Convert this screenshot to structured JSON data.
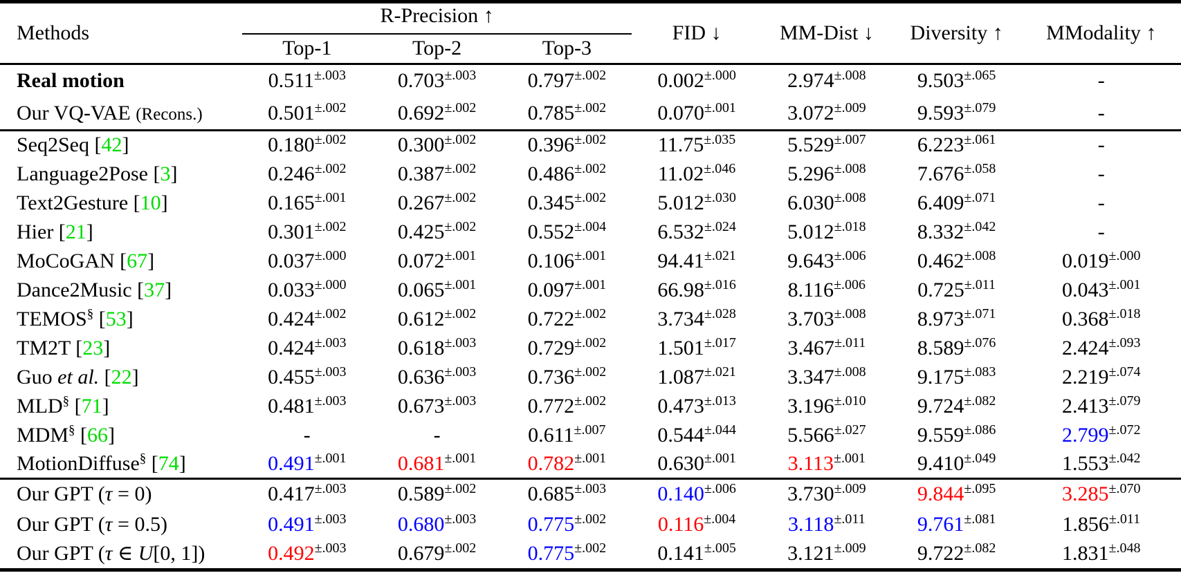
{
  "table": {
    "header": {
      "methods": "Methods",
      "r_precision": "R-Precision ↑",
      "top1": "Top-1",
      "top2": "Top-2",
      "top3": "Top-3",
      "fid": "FID ↓",
      "mm_dist": "MM-Dist ↓",
      "diversity": "Diversity ↑",
      "mmodality": "MModality ↑"
    },
    "colors": {
      "citation": "#00dc00",
      "best": "#ff0000",
      "runner_up": "#0000ff",
      "text": "#000000",
      "background": "#ffffff"
    },
    "sections": [
      {
        "rows": [
          {
            "method": [
              {
                "t": "Real motion",
                "b": true
              }
            ],
            "cells": [
              {
                "v": "0.511",
                "s": "±.003"
              },
              {
                "v": "0.703",
                "s": "±.003"
              },
              {
                "v": "0.797",
                "s": "±.002"
              },
              {
                "v": "0.002",
                "s": "±.000"
              },
              {
                "v": "2.974",
                "s": "±.008"
              },
              {
                "v": "9.503",
                "s": "±.065"
              },
              {
                "v": "-"
              }
            ]
          },
          {
            "method": [
              {
                "t": "Our VQ-VAE "
              },
              {
                "t": "(Recons.)",
                "sm": true
              }
            ],
            "cells": [
              {
                "v": "0.501",
                "s": "±.002"
              },
              {
                "v": "0.692",
                "s": "±.002"
              },
              {
                "v": "0.785",
                "s": "±.002"
              },
              {
                "v": "0.070",
                "s": "±.001"
              },
              {
                "v": "3.072",
                "s": "±.009"
              },
              {
                "v": "9.593",
                "s": "±.079"
              },
              {
                "v": "-"
              }
            ]
          }
        ]
      },
      {
        "rows": [
          {
            "method": [
              {
                "t": "Seq2Seq ["
              },
              {
                "t": "42",
                "c": "cite"
              },
              {
                "t": "]"
              }
            ],
            "cells": [
              {
                "v": "0.180",
                "s": "±.002"
              },
              {
                "v": "0.300",
                "s": "±.002"
              },
              {
                "v": "0.396",
                "s": "±.002"
              },
              {
                "v": "11.75",
                "s": "±.035"
              },
              {
                "v": "5.529",
                "s": "±.007"
              },
              {
                "v": "6.223",
                "s": "±.061"
              },
              {
                "v": "-"
              }
            ]
          },
          {
            "method": [
              {
                "t": "Language2Pose ["
              },
              {
                "t": "3",
                "c": "cite"
              },
              {
                "t": "]"
              }
            ],
            "cells": [
              {
                "v": "0.246",
                "s": "±.002"
              },
              {
                "v": "0.387",
                "s": "±.002"
              },
              {
                "v": "0.486",
                "s": "±.002"
              },
              {
                "v": "11.02",
                "s": "±.046"
              },
              {
                "v": "5.296",
                "s": "±.008"
              },
              {
                "v": "7.676",
                "s": "±.058"
              },
              {
                "v": "-"
              }
            ]
          },
          {
            "method": [
              {
                "t": "Text2Gesture ["
              },
              {
                "t": "10",
                "c": "cite"
              },
              {
                "t": "]"
              }
            ],
            "cells": [
              {
                "v": "0.165",
                "s": "±.001"
              },
              {
                "v": "0.267",
                "s": "±.002"
              },
              {
                "v": "0.345",
                "s": "±.002"
              },
              {
                "v": "5.012",
                "s": "±.030"
              },
              {
                "v": "6.030",
                "s": "±.008"
              },
              {
                "v": "6.409",
                "s": "±.071"
              },
              {
                "v": "-"
              }
            ]
          },
          {
            "method": [
              {
                "t": "Hier ["
              },
              {
                "t": "21",
                "c": "cite"
              },
              {
                "t": "]"
              }
            ],
            "cells": [
              {
                "v": "0.301",
                "s": "±.002"
              },
              {
                "v": "0.425",
                "s": "±.002"
              },
              {
                "v": "0.552",
                "s": "±.004"
              },
              {
                "v": "6.532",
                "s": "±.024"
              },
              {
                "v": "5.012",
                "s": "±.018"
              },
              {
                "v": "8.332",
                "s": "±.042"
              },
              {
                "v": "-"
              }
            ]
          },
          {
            "method": [
              {
                "t": "MoCoGAN ["
              },
              {
                "t": "67",
                "c": "cite"
              },
              {
                "t": "]"
              }
            ],
            "cells": [
              {
                "v": "0.037",
                "s": "±.000"
              },
              {
                "v": "0.072",
                "s": "±.001"
              },
              {
                "v": "0.106",
                "s": "±.001"
              },
              {
                "v": "94.41",
                "s": "±.021"
              },
              {
                "v": "9.643",
                "s": "±.006"
              },
              {
                "v": "0.462",
                "s": "±.008"
              },
              {
                "v": "0.019",
                "s": "±.000"
              }
            ]
          },
          {
            "method": [
              {
                "t": "Dance2Music ["
              },
              {
                "t": "37",
                "c": "cite"
              },
              {
                "t": "]"
              }
            ],
            "cells": [
              {
                "v": "0.033",
                "s": "±.000"
              },
              {
                "v": "0.065",
                "s": "±.001"
              },
              {
                "v": "0.097",
                "s": "±.001"
              },
              {
                "v": "66.98",
                "s": "±.016"
              },
              {
                "v": "8.116",
                "s": "±.006"
              },
              {
                "v": "0.725",
                "s": "±.011"
              },
              {
                "v": "0.043",
                "s": "±.001"
              }
            ]
          },
          {
            "method": [
              {
                "t": "TEMOS"
              },
              {
                "t": "§",
                "sup": true
              },
              {
                "t": " ["
              },
              {
                "t": "53",
                "c": "cite"
              },
              {
                "t": "]"
              }
            ],
            "cells": [
              {
                "v": "0.424",
                "s": "±.002"
              },
              {
                "v": "0.612",
                "s": "±.002"
              },
              {
                "v": "0.722",
                "s": "±.002"
              },
              {
                "v": "3.734",
                "s": "±.028"
              },
              {
                "v": "3.703",
                "s": "±.008"
              },
              {
                "v": "8.973",
                "s": "±.071"
              },
              {
                "v": "0.368",
                "s": "±.018"
              }
            ]
          },
          {
            "method": [
              {
                "t": "TM2T ["
              },
              {
                "t": "23",
                "c": "cite"
              },
              {
                "t": "]"
              }
            ],
            "cells": [
              {
                "v": "0.424",
                "s": "±.003"
              },
              {
                "v": "0.618",
                "s": "±.003"
              },
              {
                "v": "0.729",
                "s": "±.002"
              },
              {
                "v": "1.501",
                "s": "±.017"
              },
              {
                "v": "3.467",
                "s": "±.011"
              },
              {
                "v": "8.589",
                "s": "±.076"
              },
              {
                "v": "2.424",
                "s": "±.093"
              }
            ]
          },
          {
            "method": [
              {
                "t": "Guo "
              },
              {
                "t": "et al.",
                "i": true
              },
              {
                "t": " ["
              },
              {
                "t": "22",
                "c": "cite"
              },
              {
                "t": "]"
              }
            ],
            "cells": [
              {
                "v": "0.455",
                "s": "±.003"
              },
              {
                "v": "0.636",
                "s": "±.003"
              },
              {
                "v": "0.736",
                "s": "±.002"
              },
              {
                "v": "1.087",
                "s": "±.021"
              },
              {
                "v": "3.347",
                "s": "±.008"
              },
              {
                "v": "9.175",
                "s": "±.083"
              },
              {
                "v": "2.219",
                "s": "±.074"
              }
            ]
          },
          {
            "method": [
              {
                "t": "MLD"
              },
              {
                "t": "§",
                "sup": true
              },
              {
                "t": " ["
              },
              {
                "t": "71",
                "c": "cite"
              },
              {
                "t": "]"
              }
            ],
            "cells": [
              {
                "v": "0.481",
                "s": "±.003"
              },
              {
                "v": "0.673",
                "s": "±.003"
              },
              {
                "v": "0.772",
                "s": "±.002"
              },
              {
                "v": "0.473",
                "s": "±.013"
              },
              {
                "v": "3.196",
                "s": "±.010"
              },
              {
                "v": "9.724",
                "s": "±.082"
              },
              {
                "v": "2.413",
                "s": "±.079"
              }
            ]
          },
          {
            "method": [
              {
                "t": "MDM"
              },
              {
                "t": "§",
                "sup": true
              },
              {
                "t": " ["
              },
              {
                "t": "66",
                "c": "cite"
              },
              {
                "t": "]"
              }
            ],
            "cells": [
              {
                "v": "-"
              },
              {
                "v": "-"
              },
              {
                "v": "0.611",
                "s": "±.007"
              },
              {
                "v": "0.544",
                "s": "±.044"
              },
              {
                "v": "5.566",
                "s": "±.027"
              },
              {
                "v": "9.559",
                "s": "±.086"
              },
              {
                "v": "2.799",
                "s": "±.072",
                "c": "blue"
              }
            ]
          },
          {
            "method": [
              {
                "t": "MotionDiffuse"
              },
              {
                "t": "§",
                "sup": true
              },
              {
                "t": " ["
              },
              {
                "t": "74",
                "c": "cite"
              },
              {
                "t": "]"
              }
            ],
            "cells": [
              {
                "v": "0.491",
                "s": "±.001",
                "c": "blue"
              },
              {
                "v": "0.681",
                "s": "±.001",
                "c": "red"
              },
              {
                "v": "0.782",
                "s": "±.001",
                "c": "red"
              },
              {
                "v": "0.630",
                "s": "±.001"
              },
              {
                "v": "3.113",
                "s": "±.001",
                "c": "red"
              },
              {
                "v": "9.410",
                "s": "±.049"
              },
              {
                "v": "1.553",
                "s": "±.042"
              }
            ]
          }
        ]
      },
      {
        "rows": [
          {
            "method": [
              {
                "t": "Our GPT ("
              },
              {
                "t": "τ",
                "i": true
              },
              {
                "t": " = 0)"
              }
            ],
            "cells": [
              {
                "v": "0.417",
                "s": "±.003"
              },
              {
                "v": "0.589",
                "s": "±.002"
              },
              {
                "v": "0.685",
                "s": "±.003"
              },
              {
                "v": "0.140",
                "s": "±.006",
                "c": "blue"
              },
              {
                "v": "3.730",
                "s": "±.009"
              },
              {
                "v": "9.844",
                "s": "±.095",
                "c": "red"
              },
              {
                "v": "3.285",
                "s": "±.070",
                "c": "red"
              }
            ]
          },
          {
            "method": [
              {
                "t": "Our GPT ("
              },
              {
                "t": "τ",
                "i": true
              },
              {
                "t": " = 0.5)"
              }
            ],
            "cells": [
              {
                "v": "0.491",
                "s": "±.003",
                "c": "blue"
              },
              {
                "v": "0.680",
                "s": "±.003",
                "c": "blue"
              },
              {
                "v": "0.775",
                "s": "±.002",
                "c": "blue"
              },
              {
                "v": "0.116",
                "s": "±.004",
                "c": "red"
              },
              {
                "v": "3.118",
                "s": "±.011",
                "c": "blue"
              },
              {
                "v": "9.761",
                "s": "±.081",
                "c": "blue"
              },
              {
                "v": "1.856",
                "s": "±.011"
              }
            ]
          },
          {
            "method": [
              {
                "t": "Our GPT ("
              },
              {
                "t": "τ",
                "i": true
              },
              {
                "t": " ∈ "
              },
              {
                "t": "U",
                "i": true
              },
              {
                "t": "[0, 1])"
              }
            ],
            "cells": [
              {
                "v": "0.492",
                "s": "±.003",
                "c": "red"
              },
              {
                "v": "0.679",
                "s": "±.002"
              },
              {
                "v": "0.775",
                "s": "±.002",
                "c": "blue"
              },
              {
                "v": "0.141",
                "s": "±.005"
              },
              {
                "v": "3.121",
                "s": "±.009"
              },
              {
                "v": "9.722",
                "s": "±.082"
              },
              {
                "v": "1.831",
                "s": "±.048"
              }
            ]
          }
        ]
      }
    ]
  }
}
